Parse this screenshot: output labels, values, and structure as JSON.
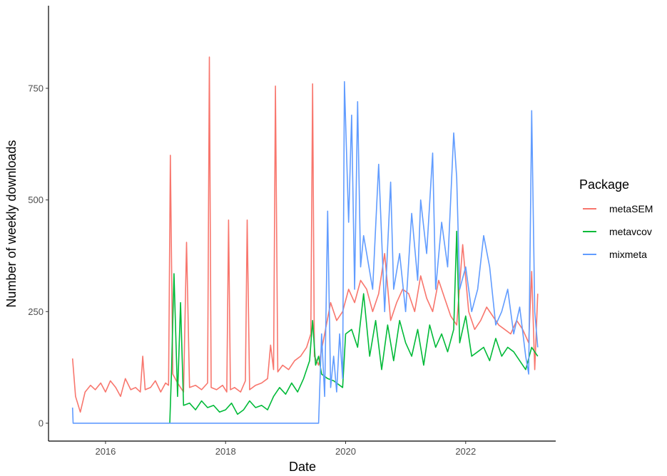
{
  "chart_data": {
    "type": "line",
    "xlabel": "Date",
    "ylabel": "Number of weekly downloads",
    "x_ticks": [
      2016,
      2018,
      2020,
      2022
    ],
    "y_ticks": [
      0,
      250,
      500,
      750
    ],
    "xlim": [
      2015.05,
      2023.5
    ],
    "ylim": [
      -40,
      935
    ],
    "grid": false,
    "legend": {
      "title": "Package",
      "position": "right"
    },
    "series": [
      {
        "name": "metaSEM",
        "color": "#F8766D",
        "x": [
          2015.45,
          2015.5,
          2015.58,
          2015.66,
          2015.75,
          2015.83,
          2015.92,
          2016.0,
          2016.08,
          2016.17,
          2016.25,
          2016.33,
          2016.42,
          2016.5,
          2016.58,
          2016.62,
          2016.66,
          2016.75,
          2016.83,
          2016.92,
          2017.0,
          2017.05,
          2017.08,
          2017.12,
          2017.2,
          2017.3,
          2017.35,
          2017.4,
          2017.5,
          2017.6,
          2017.7,
          2017.73,
          2017.76,
          2017.85,
          2017.95,
          2018.02,
          2018.05,
          2018.08,
          2018.15,
          2018.25,
          2018.33,
          2018.36,
          2018.4,
          2018.5,
          2018.6,
          2018.7,
          2018.75,
          2018.8,
          2018.83,
          2018.87,
          2018.95,
          2019.05,
          2019.15,
          2019.25,
          2019.35,
          2019.42,
          2019.45,
          2019.48,
          2019.55,
          2019.65,
          2019.75,
          2019.85,
          2019.95,
          2020.05,
          2020.15,
          2020.25,
          2020.35,
          2020.45,
          2020.55,
          2020.65,
          2020.75,
          2020.85,
          2020.95,
          2021.05,
          2021.15,
          2021.25,
          2021.35,
          2021.45,
          2021.55,
          2021.65,
          2021.75,
          2021.85,
          2021.95,
          2022.05,
          2022.15,
          2022.25,
          2022.35,
          2022.45,
          2022.55,
          2022.65,
          2022.75,
          2022.85,
          2022.95,
          2023.05,
          2023.1,
          2023.15,
          2023.2
        ],
        "y": [
          145,
          60,
          25,
          70,
          85,
          75,
          90,
          70,
          95,
          80,
          60,
          100,
          75,
          80,
          70,
          150,
          75,
          80,
          95,
          70,
          90,
          85,
          600,
          110,
          90,
          70,
          405,
          80,
          85,
          75,
          90,
          820,
          80,
          75,
          85,
          70,
          455,
          75,
          80,
          70,
          95,
          455,
          75,
          85,
          90,
          100,
          175,
          120,
          755,
          115,
          130,
          120,
          140,
          150,
          170,
          200,
          760,
          150,
          130,
          200,
          270,
          230,
          250,
          300,
          270,
          320,
          300,
          250,
          290,
          380,
          230,
          270,
          300,
          290,
          250,
          330,
          280,
          250,
          320,
          280,
          240,
          220,
          400,
          250,
          210,
          230,
          260,
          240,
          220,
          210,
          200,
          230,
          210,
          180,
          340,
          120,
          290
        ]
      },
      {
        "name": "metavcov",
        "color": "#00BA38",
        "x": [
          2017.07,
          2017.1,
          2017.14,
          2017.2,
          2017.25,
          2017.3,
          2017.4,
          2017.5,
          2017.6,
          2017.7,
          2017.8,
          2017.9,
          2018.0,
          2018.1,
          2018.2,
          2018.3,
          2018.4,
          2018.5,
          2018.6,
          2018.7,
          2018.8,
          2018.9,
          2019.0,
          2019.1,
          2019.2,
          2019.3,
          2019.4,
          2019.45,
          2019.5,
          2019.55,
          2019.6,
          2019.7,
          2019.8,
          2019.95,
          2020.0,
          2020.1,
          2020.2,
          2020.3,
          2020.4,
          2020.5,
          2020.6,
          2020.7,
          2020.8,
          2020.9,
          2021.0,
          2021.1,
          2021.2,
          2021.3,
          2021.4,
          2021.5,
          2021.6,
          2021.7,
          2021.8,
          2021.85,
          2021.9,
          2022.0,
          2022.1,
          2022.2,
          2022.3,
          2022.4,
          2022.5,
          2022.6,
          2022.7,
          2022.8,
          2022.9,
          2023.0,
          2023.1,
          2023.2
        ],
        "y": [
          0,
          120,
          335,
          60,
          270,
          40,
          45,
          30,
          50,
          35,
          40,
          25,
          30,
          45,
          20,
          30,
          50,
          35,
          40,
          30,
          60,
          80,
          65,
          90,
          70,
          100,
          140,
          230,
          130,
          150,
          110,
          100,
          95,
          80,
          200,
          210,
          170,
          290,
          150,
          230,
          120,
          220,
          140,
          230,
          180,
          150,
          210,
          130,
          220,
          170,
          200,
          160,
          210,
          430,
          180,
          240,
          150,
          160,
          170,
          140,
          190,
          150,
          170,
          160,
          140,
          120,
          170,
          150
        ]
      },
      {
        "name": "mixmeta",
        "color": "#619CFF",
        "x": [
          2015.45,
          2015.46,
          2015.48,
          2019.55,
          2019.6,
          2019.65,
          2019.7,
          2019.75,
          2019.8,
          2019.85,
          2019.9,
          2019.95,
          2019.98,
          2020.05,
          2020.1,
          2020.15,
          2020.2,
          2020.25,
          2020.3,
          2020.35,
          2020.45,
          2020.55,
          2020.65,
          2020.75,
          2020.8,
          2020.9,
          2021.0,
          2021.1,
          2021.2,
          2021.25,
          2021.35,
          2021.45,
          2021.5,
          2021.6,
          2021.7,
          2021.8,
          2021.85,
          2021.9,
          2022.0,
          2022.1,
          2022.2,
          2022.3,
          2022.4,
          2022.5,
          2022.6,
          2022.7,
          2022.8,
          2022.9,
          2023.0,
          2023.05,
          2023.1,
          2023.15,
          2023.2
        ],
        "y": [
          35,
          0,
          0,
          0,
          200,
          60,
          475,
          80,
          150,
          70,
          200,
          100,
          765,
          450,
          690,
          300,
          720,
          350,
          420,
          380,
          300,
          580,
          250,
          540,
          300,
          380,
          250,
          470,
          320,
          500,
          380,
          605,
          300,
          450,
          350,
          650,
          550,
          300,
          350,
          250,
          300,
          420,
          350,
          220,
          250,
          300,
          200,
          260,
          150,
          110,
          700,
          250,
          170
        ]
      }
    ]
  }
}
